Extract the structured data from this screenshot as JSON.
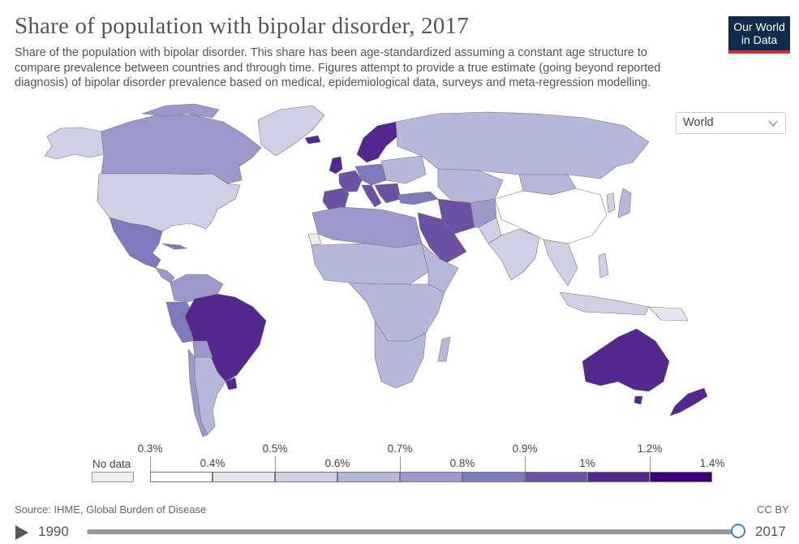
{
  "title": "Share of population with bipolar disorder, 2017",
  "subtitle": "Share of the population with bipolar disorder. This share has been age-standardized assuming a constant age structure to compare prevalence between countries and through time. Figures attempt to provide a true estimate (going beyond reported diagnosis) of bipolar disorder prevalence based on medical, epidemiological data, surveys and meta-regression modelling.",
  "logo": {
    "line1": "Our World",
    "line2": "in Data"
  },
  "region_select": {
    "selected": "World"
  },
  "legend": {
    "no_data_label": "No data",
    "no_data_color": "#eeeeee",
    "upper_labels": [
      "0.3%",
      "0.5%",
      "0.7%",
      "0.9%",
      "1.2%"
    ],
    "lower_labels": [
      "0.4%",
      "0.6%",
      "0.8%",
      "1%",
      "1.4%"
    ],
    "colors": [
      "#ffffff",
      "#e8e6f2",
      "#d1cfe5",
      "#b7b6db",
      "#9d98cb",
      "#7f7abd",
      "#6a51a3",
      "#54278f",
      "#3f007d"
    ]
  },
  "map_regions": [
    {
      "name": "North America (Canada)",
      "value_pct": 0.75,
      "color": "#9d98cb"
    },
    {
      "name": "United States",
      "value_pct": 0.6,
      "color": "#d1cfe5"
    },
    {
      "name": "Greenland",
      "value_pct": 0.55,
      "color": "#d1cfe5"
    },
    {
      "name": "Mexico & Central America",
      "value_pct": 0.85,
      "color": "#7f7abd"
    },
    {
      "name": "Northern South America",
      "value_pct": 0.8,
      "color": "#9d98cb"
    },
    {
      "name": "Brazil",
      "value_pct": 1.3,
      "color": "#54278f"
    },
    {
      "name": "Southern South America",
      "value_pct": 0.75,
      "color": "#9d98cb"
    },
    {
      "name": "Western Europe",
      "value_pct": 1.0,
      "color": "#6a51a3"
    },
    {
      "name": "Scandinavia",
      "value_pct": 1.2,
      "color": "#54278f"
    },
    {
      "name": "Eastern Europe",
      "value_pct": 0.7,
      "color": "#b7b6db"
    },
    {
      "name": "Russia",
      "value_pct": 0.65,
      "color": "#b7b6db"
    },
    {
      "name": "Central Asia",
      "value_pct": 0.65,
      "color": "#b7b6db"
    },
    {
      "name": "China",
      "value_pct": 0.3,
      "color": "#ffffff"
    },
    {
      "name": "Middle East",
      "value_pct": 0.9,
      "color": "#7f7abd"
    },
    {
      "name": "North Africa",
      "value_pct": 0.8,
      "color": "#9d98cb"
    },
    {
      "name": "Sub-Saharan Africa",
      "value_pct": 0.6,
      "color": "#b7b6db"
    },
    {
      "name": "South Asia",
      "value_pct": 0.55,
      "color": "#d1cfe5"
    },
    {
      "name": "Southeast Asia",
      "value_pct": 0.6,
      "color": "#d1cfe5"
    },
    {
      "name": "Australia",
      "value_pct": 1.35,
      "color": "#54278f"
    },
    {
      "name": "New Zealand",
      "value_pct": 1.4,
      "color": "#54278f"
    }
  ],
  "footer": {
    "source": "Source: IHME, Global Burden of Disease",
    "license": "CC BY"
  },
  "timeline": {
    "start_year": "1990",
    "end_year": "2017",
    "position_fraction": 1.0
  }
}
